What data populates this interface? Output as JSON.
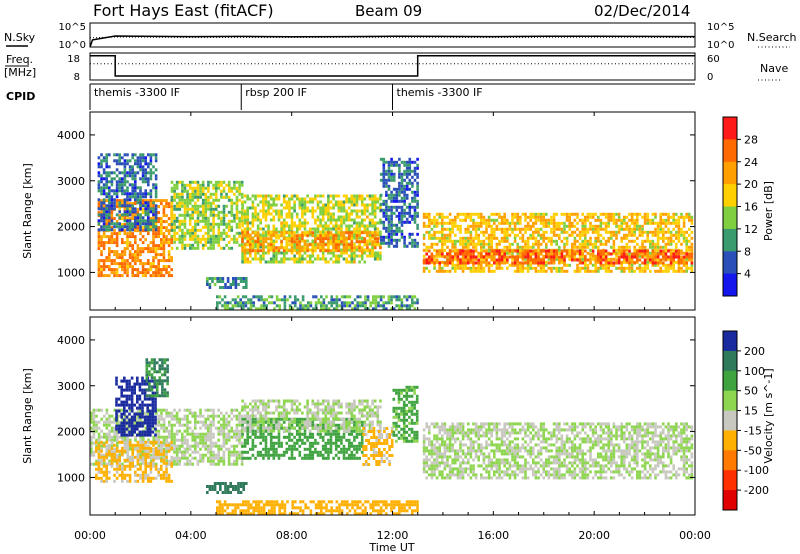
{
  "header": {
    "radar": "Fort Hays East (fitACF)",
    "beam": "Beam 09",
    "date": "02/Dec/2014"
  },
  "left_labels": {
    "nsky": "N.Sky",
    "freq_line1": "Freq.",
    "freq_line2": "[MHz]",
    "cpid": "CPID"
  },
  "right_labels": {
    "nsearch": "N.Search",
    "nave": "Nave"
  },
  "noise_axis": {
    "left_top": "10^5",
    "left_bottom": "10^0",
    "right_top": "10^5",
    "right_bottom": "10^0"
  },
  "freq_axis": {
    "left_top": "18",
    "left_bottom": "8",
    "right_top": "60",
    "right_bottom": "0"
  },
  "cpid_segments": [
    {
      "label": "themis -3300 IF",
      "start_h": 0,
      "end_h": 6
    },
    {
      "label": "rbsp 200 IF",
      "start_h": 6,
      "end_h": 12
    },
    {
      "label": "themis -3300 IF",
      "start_h": 12,
      "end_h": 24
    }
  ],
  "power_colorbar": {
    "title": "Power [dB]",
    "ticks": [
      "28",
      "24",
      "20",
      "16",
      "12",
      "8",
      "4"
    ],
    "colors": [
      "#ff1a1a",
      "#ff6a00",
      "#ff9f00",
      "#ffd000",
      "#7fcf3f",
      "#3a9b6f",
      "#2a4fb8",
      "#1515ee"
    ]
  },
  "velocity_colorbar": {
    "title": "Velocity [m s^-1]",
    "ticks": [
      "200",
      "100",
      "50",
      "15",
      "-15",
      "-50",
      "-100",
      "-200"
    ],
    "colors": [
      "#1a2a9f",
      "#2f7a5a",
      "#3fa33f",
      "#8fd650",
      "#c8c8c0",
      "#ffb000",
      "#ff7a00",
      "#ff3000",
      "#e00000"
    ]
  },
  "x_axis": {
    "label": "Time UT",
    "ticks": [
      "00:00",
      "04:00",
      "08:00",
      "12:00",
      "16:00",
      "20:00",
      "00:00"
    ]
  },
  "y_axis": {
    "label": "Slant Range [km]",
    "ticks": [
      "1000",
      "2000",
      "3000",
      "4000"
    ]
  },
  "chart_data": [
    {
      "type": "line",
      "panel": "noise",
      "series": [
        {
          "name": "N.Sky",
          "x_hours": [
            0,
            0.1,
            1,
            2,
            4,
            6,
            8,
            10,
            12,
            14,
            16,
            18,
            20,
            22,
            24
          ],
          "values": [
            1,
            30,
            200,
            180,
            150,
            160,
            140,
            150,
            170,
            160,
            150,
            180,
            170,
            160,
            150
          ]
        },
        {
          "name": "N.Search",
          "x_hours": [
            0,
            1,
            4,
            8,
            12,
            16,
            20,
            24
          ],
          "values": [
            80,
            120,
            100,
            100,
            110,
            100,
            110,
            100
          ]
        }
      ],
      "ylim": [
        1,
        100000
      ]
    },
    {
      "type": "line",
      "panel": "frequency",
      "series": [
        {
          "name": "Freq.",
          "x_hours": [
            0,
            1,
            1,
            13,
            13,
            24
          ],
          "values": [
            17,
            17,
            9.5,
            9.5,
            17,
            17
          ]
        },
        {
          "name": "Nave",
          "x_hours": [
            0,
            24
          ],
          "values": [
            14,
            14
          ]
        }
      ],
      "ylim": [
        8,
        18
      ]
    },
    {
      "type": "heatmap",
      "panel": "power",
      "x_range_hours": [
        0,
        24
      ],
      "ylim_km": [
        180,
        4500
      ],
      "zlim_db": [
        0,
        30
      ],
      "blocks": [
        {
          "t0": 0.3,
          "t1": 3.2,
          "r0": 900,
          "r1": 2600,
          "db": 22
        },
        {
          "t0": 0.3,
          "t1": 2.6,
          "r0": 1900,
          "r1": 3600,
          "db": 7
        },
        {
          "t0": 3.2,
          "t1": 6.0,
          "r0": 1500,
          "r1": 3000,
          "db": 14
        },
        {
          "t0": 6.0,
          "t1": 11.5,
          "r0": 1200,
          "r1": 2700,
          "db": 15
        },
        {
          "t0": 6.0,
          "t1": 11.5,
          "r0": 1500,
          "r1": 1900,
          "db": 21
        },
        {
          "t0": 11.5,
          "t1": 13.0,
          "r0": 1600,
          "r1": 3500,
          "db": 7
        },
        {
          "t0": 13.2,
          "t1": 23.9,
          "r0": 1000,
          "r1": 2300,
          "db": 18
        },
        {
          "t0": 13.2,
          "t1": 23.9,
          "r0": 1200,
          "r1": 1500,
          "db": 25
        },
        {
          "t0": 4.6,
          "t1": 6.2,
          "r0": 700,
          "r1": 900,
          "db": 8
        },
        {
          "t0": 5.0,
          "t1": 13.0,
          "r0": 200,
          "r1": 500,
          "db": 10
        }
      ]
    },
    {
      "type": "heatmap",
      "panel": "velocity",
      "x_range_hours": [
        0,
        24
      ],
      "ylim_km": [
        180,
        4500
      ],
      "zlim_ms": [
        -200,
        200
      ],
      "blocks": [
        {
          "t0": 0.0,
          "t1": 6.0,
          "r0": 1300,
          "r1": 2500,
          "v": 0
        },
        {
          "t0": 0.2,
          "t1": 3.2,
          "r0": 900,
          "r1": 1800,
          "v": -40
        },
        {
          "t0": 1.0,
          "t1": 2.6,
          "r0": 1900,
          "r1": 3200,
          "v": 200
        },
        {
          "t0": 2.2,
          "t1": 3.1,
          "r0": 2800,
          "r1": 3600,
          "v": 80
        },
        {
          "t0": 6.0,
          "t1": 10.8,
          "r0": 1400,
          "r1": 2300,
          "v": 55
        },
        {
          "t0": 6.0,
          "t1": 11.5,
          "r0": 2000,
          "r1": 2700,
          "v": 0
        },
        {
          "t0": 10.8,
          "t1": 12.0,
          "r0": 1300,
          "r1": 2100,
          "v": -40
        },
        {
          "t0": 12.0,
          "t1": 13.0,
          "r0": 1800,
          "r1": 3000,
          "v": 40
        },
        {
          "t0": 13.2,
          "t1": 23.9,
          "r0": 1000,
          "r1": 2200,
          "v": 0
        },
        {
          "t0": 5.0,
          "t1": 13.0,
          "r0": 200,
          "r1": 500,
          "v": -50
        },
        {
          "t0": 4.6,
          "t1": 6.2,
          "r0": 700,
          "r1": 900,
          "v": 90
        }
      ]
    }
  ]
}
